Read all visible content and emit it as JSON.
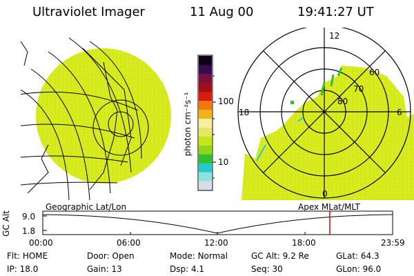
{
  "header": {
    "instrument": "Ultraviolet Imager",
    "date": "11 Aug 00",
    "time": "19:41:27 UT"
  },
  "colorbar": {
    "unit_label": "photon cm⁻²s⁻¹",
    "ticks": [
      "100",
      "10"
    ],
    "scale": "log",
    "colors": [
      "#d8dee8",
      "#8fe0e0",
      "#25c9c9",
      "#2fbf2f",
      "#8fd61a",
      "#c6e61c",
      "#e6e66a",
      "#f7f0a0",
      "#f3b21a",
      "#ee7a10",
      "#d81a10",
      "#a0101a",
      "#7a1040",
      "#3a0a50",
      "#100018"
    ]
  },
  "maps": {
    "left_label": "Geographic Lat/Lon",
    "right_label": "Apex MLat/MLT",
    "polar_time_labels": [
      "12",
      "18",
      "0",
      "6"
    ],
    "polar_lat_labels": [
      "60",
      "70",
      "80"
    ],
    "fill_color": "#d7ea1c"
  },
  "timeline": {
    "ylabel": "GC Alt",
    "yticks": [
      "9.0",
      "1.8"
    ],
    "xticks": [
      "00:00",
      "06:00",
      "12:00",
      "18:00",
      "23:59"
    ],
    "current_marker_hours": 19.69,
    "marker_color": "#e00000"
  },
  "status": {
    "row1": [
      {
        "label": "Flt:",
        "value": "HOME"
      },
      {
        "label": "Door:",
        "value": "Open"
      },
      {
        "label": "Mode:",
        "value": "Normal"
      },
      {
        "label": "GC Alt:",
        "value": "9.2 Re"
      },
      {
        "label": "GLat:",
        "value": "64.3"
      }
    ],
    "row2": [
      {
        "label": "IP:",
        "value": "18.0"
      },
      {
        "label": "Gain:",
        "value": "13"
      },
      {
        "label": "Dsp:",
        "value": "4.1"
      },
      {
        "label": "Seq:",
        "value": "30"
      },
      {
        "label": "GLon:",
        "value": "96.0"
      }
    ]
  }
}
